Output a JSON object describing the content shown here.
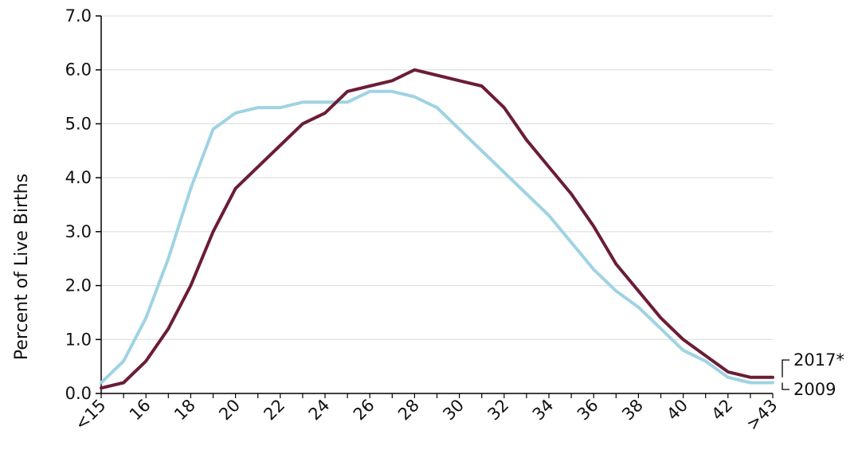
{
  "chart_data": {
    "type": "line",
    "xlabel": "",
    "ylabel": "Percent of Live Births",
    "ylim": [
      0,
      7
    ],
    "yticks": [
      "0.0",
      "1.0",
      "2.0",
      "3.0",
      "4.0",
      "5.0",
      "6.0",
      "7.0"
    ],
    "x_categories": [
      "<15",
      "15",
      "16",
      "17",
      "18",
      "19",
      "20",
      "21",
      "22",
      "23",
      "24",
      "25",
      "26",
      "27",
      "28",
      "29",
      "30",
      "31",
      "32",
      "33",
      "34",
      "35",
      "36",
      "37",
      "38",
      "39",
      "40",
      "41",
      "42",
      "43",
      ">43"
    ],
    "xtick_labels": [
      "<15",
      "16",
      "18",
      "20",
      "22",
      "24",
      "26",
      "28",
      "30",
      "32",
      "34",
      "36",
      "38",
      "40",
      "42",
      ">43"
    ],
    "grid": "horizontal",
    "series": [
      {
        "name": "2009",
        "color": "#9fd3e3",
        "values": [
          0.2,
          0.6,
          1.4,
          2.5,
          3.8,
          4.9,
          5.2,
          5.3,
          5.3,
          5.4,
          5.4,
          5.4,
          5.6,
          5.6,
          5.5,
          5.3,
          4.9,
          4.5,
          4.1,
          3.7,
          3.3,
          2.8,
          2.3,
          1.9,
          1.6,
          1.2,
          0.8,
          0.6,
          0.3,
          0.2,
          0.2
        ]
      },
      {
        "name": "2017*",
        "color": "#6b1d35",
        "values": [
          0.1,
          0.2,
          0.6,
          1.2,
          2.0,
          3.0,
          3.8,
          4.2,
          4.6,
          5.0,
          5.2,
          5.6,
          5.7,
          5.8,
          6.0,
          5.9,
          5.8,
          5.7,
          5.3,
          4.7,
          4.2,
          3.7,
          3.1,
          2.4,
          1.9,
          1.4,
          1.0,
          0.7,
          0.4,
          0.3,
          0.3
        ]
      }
    ]
  }
}
